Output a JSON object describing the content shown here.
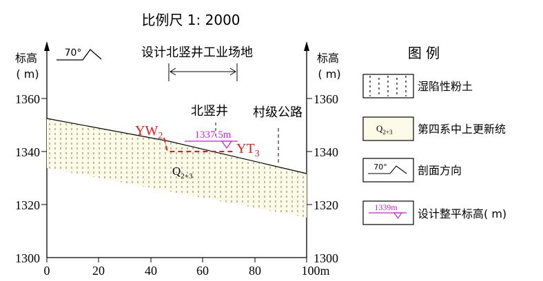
{
  "scale_label": "比例尺  1: 2000",
  "left_axis": {
    "title_line1": "标高",
    "title_line2": "( m)",
    "ticks": [
      "1360",
      "1340",
      "1320",
      "1300"
    ]
  },
  "right_axis": {
    "title_line1": "标高",
    "title_line2": "( m)",
    "ticks": [
      "1360",
      "1340",
      "1320",
      "1300"
    ]
  },
  "x_axis": {
    "ticks": [
      "0",
      "20",
      "40",
      "60",
      "80",
      "100m"
    ]
  },
  "direction_marker": {
    "angle": "70°"
  },
  "site_label": "设计北竖井工业场地",
  "shaft_label": "北竖井",
  "road_label": "村级公路",
  "points": {
    "yw2_main": "YW",
    "yw2_sub": "2",
    "yt3_main": "YT",
    "yt3_sub": "3"
  },
  "design_elevation": "1337.5m",
  "stratum_label": {
    "main": "Q",
    "sub": "2+3"
  },
  "legend": {
    "title": "图  例",
    "items": [
      {
        "text": "湿陷性粉土"
      },
      {
        "text": "第四系中上更新统",
        "symbol_main": "Q",
        "symbol_sub": "2+3"
      },
      {
        "text": "剖面方向",
        "symbol": "70°"
      },
      {
        "text": "设计整平标高( m)",
        "symbol": "1339m"
      }
    ]
  },
  "colors": {
    "stratum_fill": "#fbfbe8",
    "design_red": "#e21b1b",
    "elevation_magenta": "#d21fd8",
    "line": "#000000"
  }
}
